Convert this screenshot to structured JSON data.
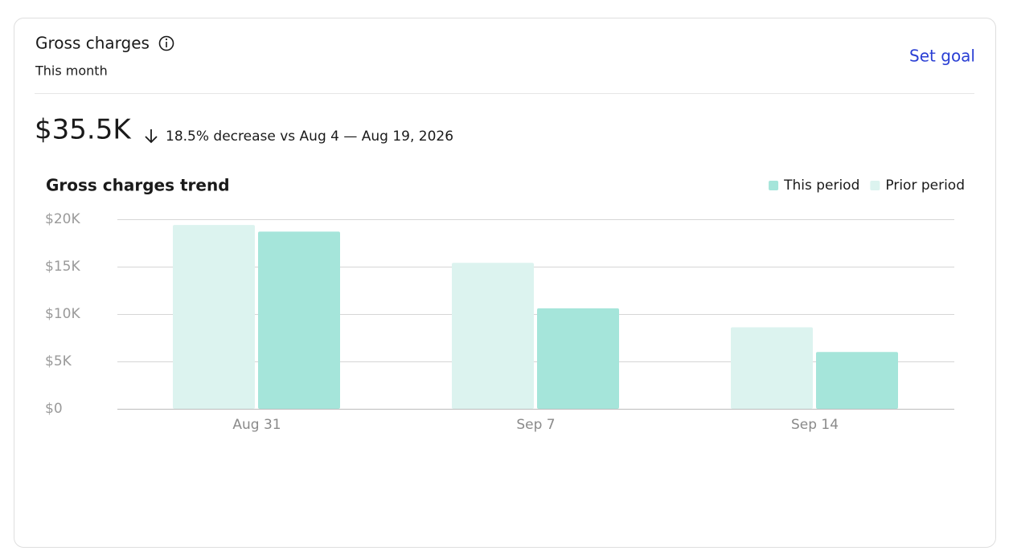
{
  "header": {
    "title": "Gross charges",
    "subtitle": "This month",
    "action": "Set goal"
  },
  "summary": {
    "value": "$35.5K",
    "change": "18.5% decrease vs Aug 4 — Aug 19, 2026"
  },
  "chart_data": {
    "type": "bar",
    "title": "Gross charges trend",
    "categories": [
      "Aug 31",
      "Sep 7",
      "Sep 14"
    ],
    "series": [
      {
        "name": "This period",
        "color": "#a5e5da",
        "values": [
          18700,
          10600,
          6000
        ]
      },
      {
        "name": "Prior period",
        "color": "#dcf3ef",
        "values": [
          19400,
          15400,
          8600
        ]
      }
    ],
    "ylim": [
      0,
      20000
    ],
    "yticks": [
      {
        "value": 0,
        "label": "$0"
      },
      {
        "value": 5000,
        "label": "$5K"
      },
      {
        "value": 10000,
        "label": "$10K"
      },
      {
        "value": 15000,
        "label": "$15K"
      },
      {
        "value": 20000,
        "label": "$20K"
      }
    ],
    "grid": true,
    "legend": "top-right"
  }
}
